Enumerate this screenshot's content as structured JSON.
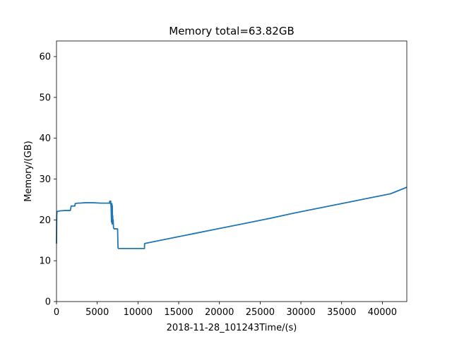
{
  "chart_data": {
    "type": "line",
    "title": "Memory total=63.82GB",
    "xlabel": "2018-11-28_101243Time/(s)",
    "ylabel": "Memory/(GB)",
    "xlim": [
      0,
      43000
    ],
    "ylim": [
      0,
      63.82
    ],
    "xticks": [
      0,
      5000,
      10000,
      15000,
      20000,
      25000,
      30000,
      35000,
      40000
    ],
    "xtick_labels": [
      "0",
      "5000",
      "10000",
      "15000",
      "20000",
      "25000",
      "30000",
      "35000",
      "40000"
    ],
    "yticks": [
      0,
      10,
      20,
      30,
      40,
      50,
      60
    ],
    "ytick_labels": [
      "0",
      "10",
      "20",
      "30",
      "40",
      "50",
      "60"
    ],
    "grid": false,
    "line_color": "#1f77b4",
    "series": [
      {
        "name": "memory",
        "x": [
          0,
          30,
          60,
          120,
          200,
          400,
          1000,
          1700,
          1750,
          1800,
          2250,
          2300,
          2600,
          2800,
          3500,
          4500,
          5500,
          6200,
          6500,
          6550,
          6600,
          6650,
          6700,
          6750,
          6800,
          6820,
          6850,
          6880,
          6900,
          6930,
          6960,
          7000,
          7100,
          7400,
          7500,
          7550,
          7600,
          7700,
          8000,
          9000,
          10000,
          10800,
          10810,
          11000,
          14000,
          17000,
          20000,
          23000,
          26000,
          29000,
          32000,
          35000,
          38000,
          41000,
          43000
        ],
        "y": [
          14.2,
          21.0,
          22.0,
          22.1,
          22.1,
          22.2,
          22.3,
          22.3,
          22.8,
          23.4,
          23.4,
          24.0,
          24.1,
          24.1,
          24.2,
          24.2,
          24.1,
          24.1,
          24.1,
          24.6,
          24.0,
          24.6,
          23.0,
          19.5,
          24.0,
          19.0,
          23.5,
          19.2,
          21.0,
          19.0,
          20.0,
          18.0,
          17.8,
          17.8,
          17.8,
          13.2,
          13.0,
          13.0,
          13.0,
          13.0,
          13.0,
          13.0,
          14.2,
          14.3,
          15.5,
          16.7,
          17.9,
          19.1,
          20.3,
          21.6,
          22.8,
          24.0,
          25.2,
          26.4,
          28.0
        ]
      }
    ]
  }
}
